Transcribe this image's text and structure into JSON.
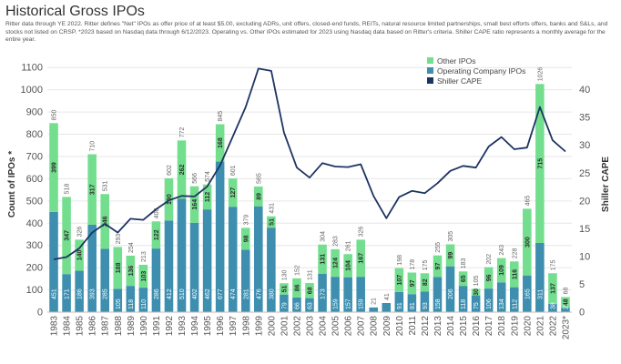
{
  "title": "Historical Gross IPOs",
  "subtitle": "Ritter data through YE 2022. Ritter defines \"Net\" IPOs as offer price of at least $5.00, excluding ADRs, unit offers, closed-end funds, REITs, natural resource limited partnerships, small best efforts offers, banks and S&Ls, and stocks not listed on CRSP. *2023 based on Nasdaq data through 6/12/2023. Operating vs. Other IPOs estimated for 2023 using Nasdaq data based on Ritter's criteria. Shiller CAPE ratio represents a monthly average for the entire year.",
  "colors": {
    "operating": "#3d8eaf",
    "other": "#74de8f",
    "cape": "#1d3461",
    "grid": "#e6e6e6",
    "axis_text": "#555555",
    "label_light": "#ffffff",
    "label_dark": "#666666"
  },
  "chart_data": {
    "type": "bar",
    "stacked": true,
    "categories": [
      "1983",
      "1984",
      "1985",
      "1986",
      "1987",
      "1988",
      "1989",
      "1990",
      "1991",
      "1992",
      "1993",
      "1994",
      "1995",
      "1996",
      "1997",
      "1998",
      "1999",
      "2000",
      "2001",
      "2002",
      "2003",
      "2004",
      "2005",
      "2006",
      "2007",
      "2008",
      "2009",
      "2010",
      "2011",
      "2012",
      "2013",
      "2014",
      "2015",
      "2016",
      "2017",
      "2018",
      "2019",
      "2020",
      "2021",
      "2022",
      "2023*"
    ],
    "series": [
      {
        "name": "Operating Company IPOs",
        "values": [
          451,
          171,
          186,
          393,
          285,
          105,
          118,
          110,
          286,
          412,
          510,
          402,
          462,
          677,
          474,
          281,
          476,
          380,
          79,
          66,
          63,
          173,
          159,
          157,
          159,
          21,
          41,
          91,
          81,
          93,
          158,
          206,
          118,
          75,
          106,
          134,
          112,
          165,
          311,
          38,
          20
        ]
      },
      {
        "name": "Other IPOs",
        "values": [
          399,
          347,
          140,
          317,
          246,
          188,
          136,
          103,
          122,
          190,
          262,
          164,
          112,
          168,
          127,
          98,
          89,
          51,
          51,
          86,
          68,
          131,
          124,
          104,
          167,
          0,
          0,
          107,
          97,
          82,
          97,
          99,
          65,
          30,
          96,
          109,
          116,
          300,
          715,
          137,
          48
        ]
      }
    ],
    "totals": [
      850,
      518,
      326,
      710,
      531,
      293,
      254,
      213,
      408,
      602,
      772,
      566,
      574,
      845,
      601,
      379,
      565,
      431,
      130,
      152,
      131,
      304,
      283,
      261,
      326,
      21,
      41,
      198,
      178,
      175,
      255,
      305,
      183,
      105,
      202,
      243,
      228,
      465,
      1026,
      175,
      68
    ],
    "bar_labels_total_only": [
      "2008",
      "2009"
    ],
    "line": {
      "name": "Shiller CAPE",
      "axis": "right",
      "values": [
        9.5,
        9.9,
        11.5,
        14.3,
        15.9,
        14.3,
        16.8,
        16.6,
        18.5,
        20.1,
        20.9,
        20.8,
        22.6,
        26.4,
        31.6,
        36.9,
        43.8,
        43.4,
        32.3,
        26.0,
        24.2,
        26.8,
        26.2,
        26.1,
        26.6,
        20.9,
        16.9,
        20.7,
        21.8,
        21.4,
        23.2,
        25.4,
        26.3,
        26.0,
        29.8,
        31.5,
        29.3,
        29.6,
        36.9,
        30.9,
        28.9
      ]
    },
    "ylabel": "Count of IPOs *",
    "y2label": "Shiller CAPE",
    "ylim": [
      0,
      1150
    ],
    "y2lim": [
      0,
      46
    ],
    "yticks": [
      0,
      100,
      200,
      300,
      400,
      500,
      600,
      700,
      800,
      900,
      1000,
      1100
    ],
    "y2ticks": [
      0,
      5,
      10,
      15,
      20,
      25,
      30,
      35,
      40
    ],
    "legend": {
      "position": "top-right",
      "entries": [
        "Other IPOs",
        "Operating Company IPOs",
        "Shiller CAPE"
      ]
    }
  }
}
